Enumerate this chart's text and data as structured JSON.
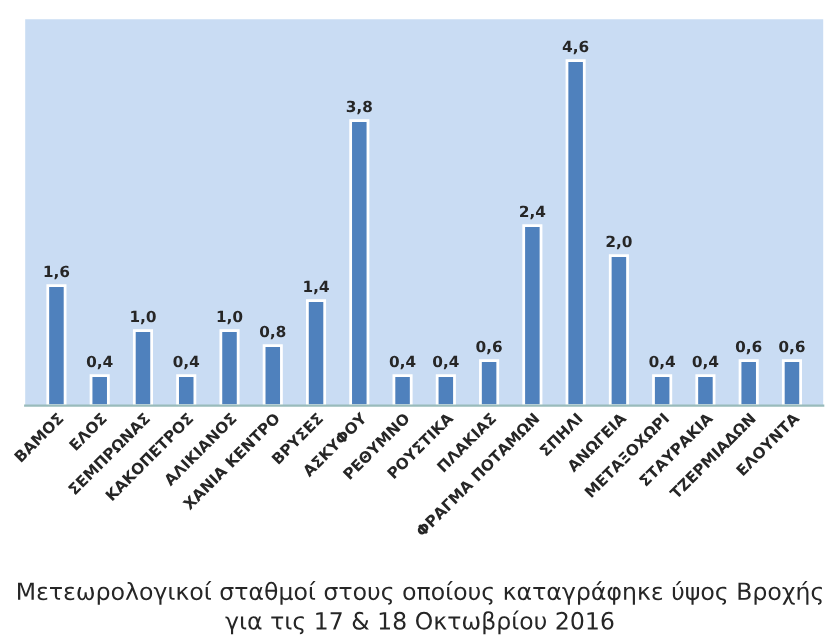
{
  "chart_data": {
    "type": "bar",
    "title": "Μετεωρολογικοί σταθμοί στους οποίους καταγράφηκε ύψος Βροχής\nγια τις 17 & 18 Οκτωβρίου 2016",
    "categories": [
      "ΒΑΜΟΣ",
      "ΕΛΟΣ",
      "ΣΕΜΠΡΩΝΑΣ",
      "ΚΑΚΟΠΕΤΡΟΣ",
      "ΑΛΙΚΙΑΝΟΣ",
      "ΧΑΝΙΑ ΚΕΝΤΡΟ",
      "ΒΡΥΣΕΣ",
      "ΑΣΚΥΦΟΥ",
      "ΡΕΘΥΜΝΟ",
      "ΡΟΥΣΤΙΚΑ",
      "ΠΛΑΚΙΑΣ",
      "ΦΡΑΓΜΑ ΠΟΤΑΜΩΝ",
      "ΣΠΗΛΙ",
      "ΑΝΩΓΕΙΑ",
      "ΜΕΤΑΞΟΧΩΡΙ",
      "ΣΤΑΥΡΑΚΙΑ",
      "ΤΖΕΡΜΙΑΔΩΝ",
      "ΕΛΟΥΝΤΑ"
    ],
    "values": [
      1.6,
      0.4,
      1.0,
      0.4,
      1.0,
      0.8,
      1.4,
      3.8,
      0.4,
      0.4,
      0.6,
      2.4,
      4.6,
      2.0,
      0.4,
      0.4,
      0.6,
      0.6
    ],
    "value_labels": [
      "1,6",
      "0,4",
      "1,0",
      "0,4",
      "1,0",
      "0,8",
      "1,4",
      "3,8",
      "0,4",
      "0,4",
      "0,6",
      "2,4",
      "4,6",
      "2,0",
      "0,4",
      "0,4",
      "0,6",
      "0,6"
    ],
    "color": "#4f81bd"
  }
}
